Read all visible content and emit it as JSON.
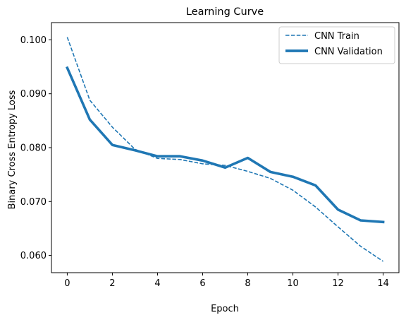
{
  "chart_data": {
    "type": "line",
    "title": "Learning Curve",
    "xlabel": "Epoch",
    "ylabel": "Binary Cross Entropy Loss",
    "xlim": [
      -0.7,
      14.7
    ],
    "ylim": [
      0.0568,
      0.1032
    ],
    "xticks": [
      0,
      2,
      4,
      6,
      8,
      10,
      12,
      14
    ],
    "yticks": [
      0.06,
      0.07,
      0.08,
      0.09,
      0.1
    ],
    "ytick_labels": [
      "0.060",
      "0.070",
      "0.080",
      "0.090",
      "0.100"
    ],
    "grid": false,
    "legend_position": "top-right",
    "x": [
      0,
      1,
      2,
      3,
      4,
      5,
      6,
      7,
      8,
      9,
      10,
      11,
      12,
      13,
      14
    ],
    "series": [
      {
        "name": "CNN Train",
        "style": "dashed",
        "color": "#1f77b4",
        "values": [
          0.1005,
          0.0888,
          0.0838,
          0.0797,
          0.078,
          0.0778,
          0.077,
          0.0767,
          0.0756,
          0.0743,
          0.0721,
          0.069,
          0.0653,
          0.0617,
          0.0589
        ]
      },
      {
        "name": "CNN Validation",
        "style": "solid-thick",
        "color": "#1f77b4",
        "values": [
          0.0948,
          0.0852,
          0.0805,
          0.0795,
          0.0784,
          0.0784,
          0.0776,
          0.0763,
          0.0781,
          0.0755,
          0.0746,
          0.073,
          0.0685,
          0.0665,
          0.0662
        ]
      }
    ]
  }
}
